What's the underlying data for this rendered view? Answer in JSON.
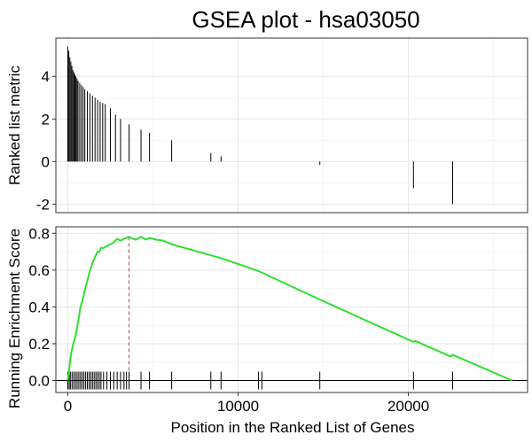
{
  "chart_data": {
    "type": "line",
    "title": "GSEA plot - hsa03050",
    "xlabel": "Position in the Ranked List of Genes",
    "x_range": [
      -700,
      27000
    ],
    "x_ticks": [
      0,
      10000,
      20000
    ],
    "x_tick_labels": [
      "0",
      "10000",
      "20000"
    ],
    "grid": true,
    "panels": {
      "ranked_metric": {
        "type": "bar",
        "ylabel": "Ranked list metric",
        "ylim": [
          -2.4,
          5.8
        ],
        "y_ticks": [
          -2,
          0,
          2,
          4
        ],
        "y_tick_labels": [
          "-2",
          "0",
          "2",
          "4"
        ],
        "x": [
          0,
          60,
          120,
          180,
          240,
          300,
          360,
          420,
          480,
          540,
          600,
          700,
          800,
          900,
          1000,
          1150,
          1300,
          1450,
          1600,
          1750,
          1900,
          2050,
          2200,
          2500,
          2800,
          3100,
          3600,
          4300,
          4800,
          6100,
          8400,
          9000,
          14800,
          20300,
          22600
        ],
        "values": [
          5.4,
          5.2,
          4.9,
          4.7,
          4.5,
          4.3,
          4.2,
          4.1,
          4.0,
          3.9,
          3.8,
          3.7,
          3.6,
          3.5,
          3.4,
          3.3,
          3.2,
          3.1,
          3.0,
          2.9,
          2.8,
          2.75,
          2.7,
          2.5,
          2.2,
          2.0,
          1.75,
          1.5,
          1.35,
          1.0,
          0.4,
          0.25,
          -0.15,
          -1.25,
          -2.0
        ]
      },
      "running_es": {
        "type": "line",
        "ylabel": "Running Enrichment Score",
        "ylim": [
          -0.065,
          0.835
        ],
        "y_ticks": [
          0.0,
          0.2,
          0.4,
          0.6,
          0.8
        ],
        "y_tick_labels": [
          "0.0",
          "0.2",
          "0.4",
          "0.6",
          "0.8"
        ],
        "color": "#2ee02e",
        "peak_marker": {
          "x": 3600,
          "y": 0.78,
          "color": "#b24a4a"
        },
        "x": [
          0,
          80,
          150,
          250,
          350,
          450,
          550,
          650,
          750,
          850,
          950,
          1050,
          1150,
          1250,
          1350,
          1450,
          1550,
          1650,
          1750,
          1850,
          1950,
          2100,
          2300,
          2500,
          2700,
          2900,
          3100,
          3300,
          3450,
          3600,
          3800,
          4000,
          4300,
          4600,
          4800,
          5200,
          5600,
          6100,
          8400,
          9000,
          11200,
          14800,
          20300,
          20400,
          22500,
          22600,
          26100
        ],
        "values": [
          0.0,
          0.06,
          0.12,
          0.17,
          0.21,
          0.24,
          0.29,
          0.34,
          0.4,
          0.43,
          0.47,
          0.51,
          0.54,
          0.58,
          0.61,
          0.64,
          0.66,
          0.68,
          0.7,
          0.7,
          0.72,
          0.72,
          0.73,
          0.74,
          0.75,
          0.77,
          0.76,
          0.77,
          0.775,
          0.78,
          0.77,
          0.765,
          0.78,
          0.765,
          0.775,
          0.765,
          0.76,
          0.74,
          0.68,
          0.665,
          0.595,
          0.44,
          0.21,
          0.215,
          0.13,
          0.14,
          0.0
        ]
      }
    },
    "hit_positions": [
      0,
      80,
      150,
      250,
      350,
      450,
      550,
      650,
      750,
      850,
      950,
      1050,
      1150,
      1250,
      1350,
      1450,
      1550,
      1650,
      1750,
      1850,
      1950,
      2100,
      2300,
      2500,
      2700,
      2900,
      3100,
      3300,
      3450,
      3600,
      4300,
      4800,
      6100,
      8400,
      9000,
      11200,
      11400,
      14800,
      20300,
      22600
    ]
  }
}
